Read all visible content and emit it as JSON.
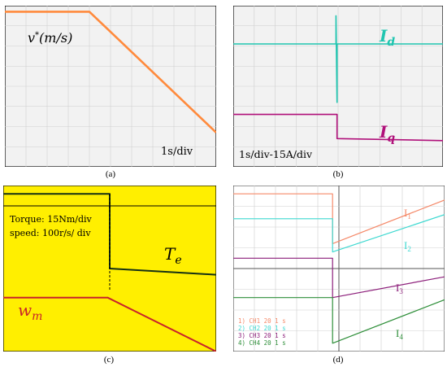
{
  "captions": {
    "a": "(a)",
    "b": "(b)",
    "c": "(c)",
    "d": "(d)"
  },
  "panels": {
    "a": {
      "background": "#f2f2f2",
      "grid": true,
      "timebase": "1s/div"
    },
    "b": {
      "background": "#f2f2f2",
      "grid": true,
      "timebase": "1s/div-15A/div"
    },
    "c": {
      "background": "#ffef00",
      "grid": false,
      "annotations": [
        "Torque: 15Nm/div",
        "speed: 100r/s/ div"
      ]
    },
    "d": {
      "background": "#ffffff",
      "grid": true,
      "channel_legend": [
        "CH1  20    1 s",
        "CH2  20    1 s",
        "CH3  20    1 s",
        "CH4  20    1 s"
      ],
      "channel_numbers": [
        "1)",
        "2)",
        "3)",
        "4)"
      ]
    }
  },
  "colors": {
    "a_speed": "#ff8a3c",
    "b_id": "#1fc5b0",
    "b_iq": "#b0107a",
    "c_torque": "#143014",
    "c_speed": "#c8232b",
    "d_i1": "#f58a6a",
    "d_i2": "#3fd9d1",
    "d_i3": "#8c1e7a",
    "d_i4": "#2f8f3a"
  },
  "chart_data": [
    {
      "id": "a",
      "type": "line",
      "x_unit": "s",
      "xlim": [
        0,
        10
      ],
      "ylim": [
        0,
        8
      ],
      "series": [
        {
          "name": "v*(m/s)",
          "x": [
            0,
            4,
            10
          ],
          "y": [
            7.7,
            7.7,
            1.7
          ]
        }
      ]
    },
    {
      "id": "b",
      "type": "line",
      "x_unit": "s",
      "xlim": [
        0,
        10
      ],
      "ylim": [
        0,
        8
      ],
      "series": [
        {
          "name": "Id",
          "x": [
            0,
            4.9,
            4.9,
            4.95,
            4.95,
            10
          ],
          "y": [
            6.1,
            6.1,
            7.5,
            3.2,
            6.1,
            6.1
          ]
        },
        {
          "name": "Iq",
          "x": [
            0,
            4.95,
            4.95,
            10
          ],
          "y": [
            2.6,
            2.6,
            1.4,
            1.3
          ]
        }
      ]
    },
    {
      "id": "c",
      "type": "line",
      "x_unit": "s",
      "xlim": [
        0,
        10
      ],
      "ylim": [
        0,
        8
      ],
      "series": [
        {
          "name": "Te",
          "x": [
            0,
            5,
            5,
            10
          ],
          "y": [
            7.6,
            7.6,
            4.0,
            3.7
          ]
        },
        {
          "name": "wm",
          "x": [
            0,
            4.9,
            10
          ],
          "y": [
            2.6,
            2.6,
            0
          ]
        }
      ]
    },
    {
      "id": "d",
      "type": "line",
      "x_unit": "s",
      "xlim": [
        0,
        10
      ],
      "ylim": [
        0,
        8
      ],
      "series": [
        {
          "name": "I1",
          "x": [
            0,
            4.7,
            4.7,
            10
          ],
          "y": [
            7.6,
            7.6,
            5.2,
            7.3
          ]
        },
        {
          "name": "I2",
          "x": [
            0,
            4.7,
            4.7,
            10
          ],
          "y": [
            6.4,
            6.4,
            4.8,
            6.6
          ]
        },
        {
          "name": "I3",
          "x": [
            0,
            4.7,
            4.7,
            10
          ],
          "y": [
            4.5,
            4.5,
            2.6,
            3.6
          ]
        },
        {
          "name": "I4",
          "x": [
            0,
            4.7,
            4.7,
            10
          ],
          "y": [
            2.6,
            2.6,
            0.4,
            2.5
          ]
        }
      ]
    }
  ]
}
